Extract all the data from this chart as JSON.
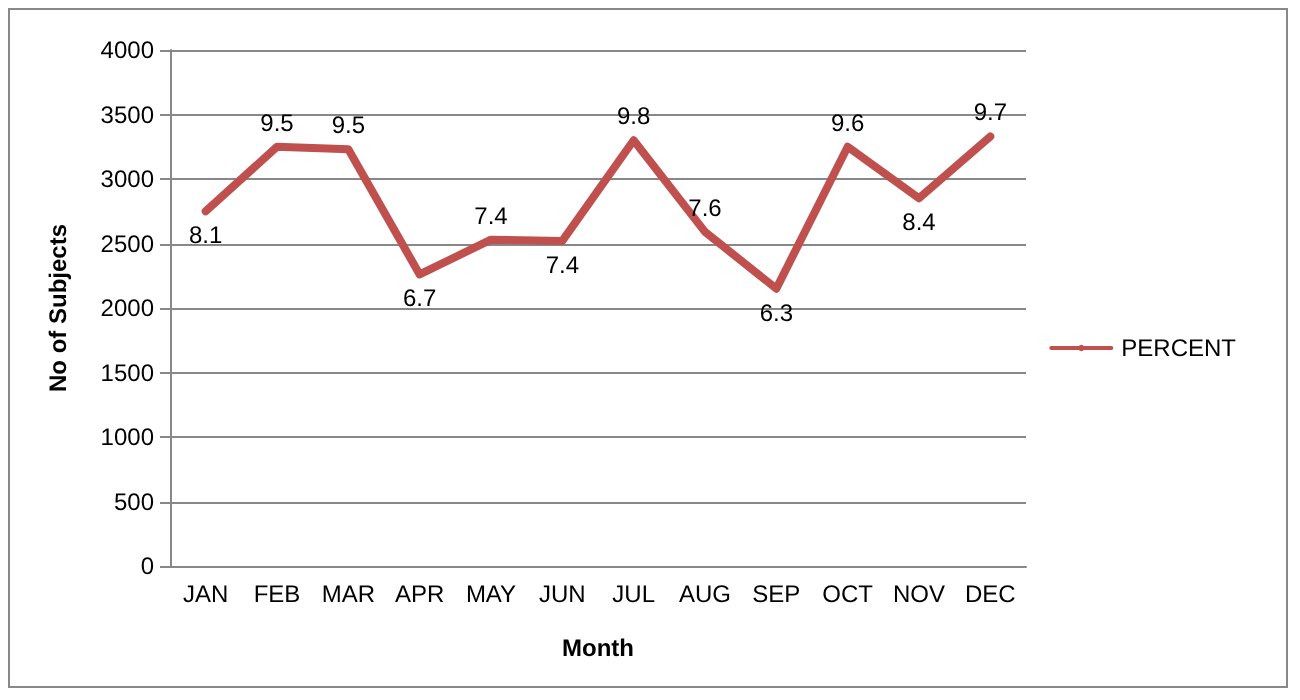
{
  "chart_data": {
    "type": "line",
    "xlabel": "Month",
    "ylabel": "No of Subjects",
    "categories": [
      "JAN",
      "FEB",
      "MAR",
      "APR",
      "MAY",
      "JUN",
      "JUL",
      "AUG",
      "SEP",
      "OCT",
      "NOV",
      "DEC"
    ],
    "series": [
      {
        "name": "PERCENT",
        "color": "#c0504d",
        "values": [
          2750,
          3250,
          3230,
          2260,
          2530,
          2520,
          3300,
          2590,
          2150,
          3250,
          2850,
          3330
        ]
      }
    ],
    "annotations": [
      {
        "text": "8.1",
        "x": "JAN",
        "y": 2750
      },
      {
        "text": "9.5",
        "x": "FEB",
        "y": 3250
      },
      {
        "text": "9.5",
        "x": "MAR",
        "y": 3230
      },
      {
        "text": "6.7",
        "x": "APR",
        "y": 2260
      },
      {
        "text": "7.4",
        "x": "MAY",
        "y": 2530
      },
      {
        "text": "7.4",
        "x": "JUN",
        "y": 2520
      },
      {
        "text": "9.8",
        "x": "JUL",
        "y": 3300
      },
      {
        "text": "7.6",
        "x": "AUG",
        "y": 2590
      },
      {
        "text": "6.3",
        "x": "SEP",
        "y": 2150
      },
      {
        "text": "9.6",
        "x": "OCT",
        "y": 3250
      },
      {
        "text": "8.4",
        "x": "NOV",
        "y": 2850
      },
      {
        "text": "9.7",
        "x": "DEC",
        "y": 3330
      }
    ],
    "ylim": [
      0,
      4000
    ],
    "yticks": [
      0,
      500,
      1000,
      1500,
      2000,
      2500,
      3000,
      3500,
      4000
    ],
    "grid": "y",
    "legend": "right",
    "marker": "none",
    "line_style": "solid"
  }
}
